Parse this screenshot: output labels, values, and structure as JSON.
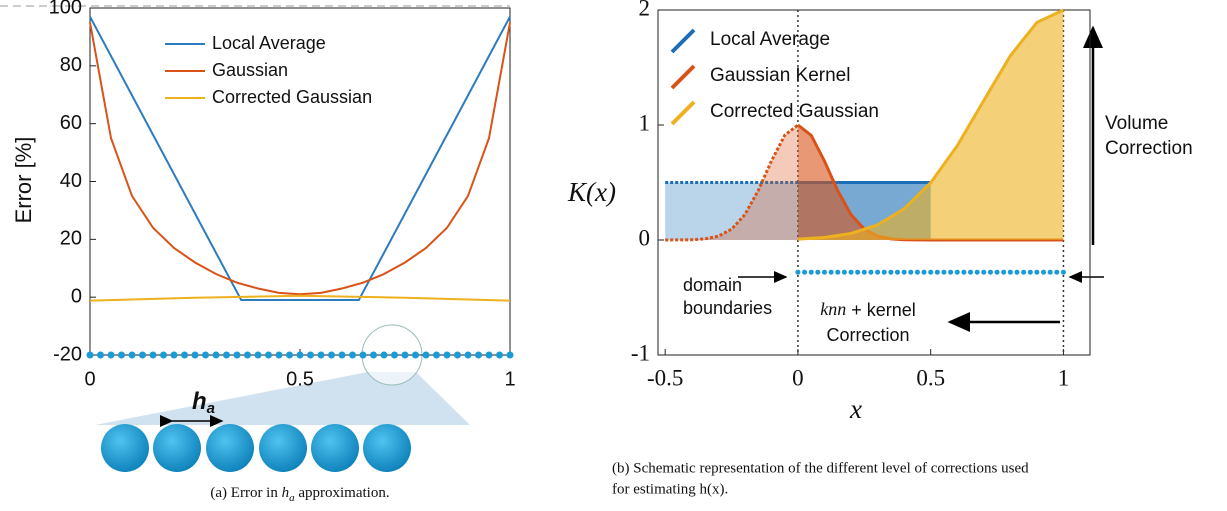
{
  "chart_data": [
    {
      "type": "line",
      "xlim": [
        0,
        1
      ],
      "ylim": [
        -20,
        100
      ],
      "xticks": [
        0,
        0.5,
        1
      ],
      "yticks": [
        -20,
        0,
        20,
        40,
        60,
        80,
        100
      ],
      "ylabel": "Error [%]",
      "legend": "top",
      "series": [
        {
          "name": "Local Average",
          "color": "#2b7bbf",
          "x": [
            0,
            0.36,
            0.64,
            1
          ],
          "values": [
            97,
            -1,
            -1,
            97
          ]
        },
        {
          "name": "Gaussian",
          "color": "#d95319",
          "x": [
            0,
            0.05,
            0.1,
            0.15,
            0.2,
            0.25,
            0.3,
            0.35,
            0.4,
            0.45,
            0.5,
            0.55,
            0.6,
            0.65,
            0.7,
            0.75,
            0.8,
            0.85,
            0.9,
            0.95,
            1
          ],
          "values": [
            95,
            55,
            35,
            24,
            17,
            12,
            8,
            5,
            3,
            1.5,
            1,
            1.5,
            3,
            5,
            8,
            12,
            17,
            24,
            35,
            55,
            95
          ]
        },
        {
          "name": "Corrected Gaussian",
          "color": "#edb120",
          "x": [
            0,
            0.25,
            0.5,
            0.75,
            1
          ],
          "values": [
            -1.2,
            -0.2,
            0.5,
            -0.2,
            -1.2
          ]
        }
      ],
      "points": {
        "color": "#1a9ad6",
        "x": [
          0,
          0.025,
          0.05,
          0.075,
          0.1,
          0.125,
          0.15,
          0.175,
          0.2,
          0.225,
          0.25,
          0.275,
          0.3,
          0.325,
          0.35,
          0.375,
          0.4,
          0.425,
          0.45,
          0.475,
          0.5,
          0.525,
          0.55,
          0.575,
          0.6,
          0.625,
          0.65,
          0.675,
          0.7,
          0.725,
          0.75,
          0.775,
          0.8,
          0.825,
          0.85,
          0.875,
          0.9,
          0.925,
          0.95,
          0.975,
          1
        ],
        "values": [
          -20,
          -20,
          -20,
          -20,
          -20,
          -20,
          -20,
          -20,
          -20,
          -20,
          -20,
          -20,
          -20,
          -20,
          -20,
          -20,
          -20,
          -20,
          -20,
          -20,
          -20,
          -20,
          -20,
          -20,
          -20,
          -20,
          -20,
          -20,
          -20,
          -20,
          -20,
          -20,
          -20,
          -20,
          -20,
          -20,
          -20,
          -20,
          -20,
          -20,
          -20
        ]
      },
      "spacing_label": "h",
      "spacing_subscript": "a",
      "caption": {
        "prefix": "(a) Error in",
        "symbol": "h",
        "subscript": "a",
        "suffix": "approximation."
      }
    },
    {
      "type": "line",
      "xlim": [
        -0.527,
        1.1
      ],
      "ylim": [
        -1,
        2
      ],
      "xticks": [
        -0.5,
        0,
        0.5,
        1
      ],
      "yticks": [
        -1,
        0,
        1,
        2
      ],
      "xlabel": "x",
      "ylabel": "K(x)",
      "fill": true,
      "boundaries": [
        0,
        1
      ],
      "legend": "top-left",
      "series": [
        {
          "name": "Local Average",
          "color": "#1c6fb6",
          "x": [
            -0.5,
            0,
            0.5
          ],
          "values": [
            0.5,
            0.5,
            0.5
          ]
        },
        {
          "name": "Gaussian Kernel",
          "color": "#d95319",
          "x": [
            -0.5,
            -0.4,
            -0.35,
            -0.3,
            -0.25,
            -0.2,
            -0.15,
            -0.1,
            -0.05,
            0,
            0.05,
            0.1,
            0.15,
            0.2,
            0.25,
            0.3,
            0.35,
            0.4,
            0.5,
            1
          ],
          "values": [
            0,
            0.002,
            0.01,
            0.033,
            0.094,
            0.22,
            0.428,
            0.686,
            0.91,
            1,
            0.91,
            0.686,
            0.428,
            0.22,
            0.094,
            0.033,
            0.01,
            0.002,
            0,
            0
          ]
        },
        {
          "name": "Corrected Gaussian",
          "color": "#edb120",
          "x": [
            0,
            0.1,
            0.2,
            0.3,
            0.4,
            0.5,
            0.6,
            0.7,
            0.8,
            0.9,
            1
          ],
          "values": [
            0.008,
            0.022,
            0.057,
            0.131,
            0.271,
            0.498,
            0.82,
            1.213,
            1.602,
            1.892,
            2
          ]
        }
      ],
      "points": {
        "color": "#1a9ad6",
        "x": [
          0,
          0.025,
          0.05,
          0.075,
          0.1,
          0.125,
          0.15,
          0.175,
          0.2,
          0.225,
          0.25,
          0.275,
          0.3,
          0.325,
          0.35,
          0.375,
          0.4,
          0.425,
          0.45,
          0.475,
          0.5,
          0.525,
          0.55,
          0.575,
          0.6,
          0.625,
          0.65,
          0.675,
          0.7,
          0.725,
          0.75,
          0.775,
          0.8,
          0.825,
          0.85,
          0.875,
          0.9,
          0.925,
          0.95,
          0.975,
          1
        ],
        "values": [
          -0.28,
          -0.28,
          -0.28,
          -0.28,
          -0.28,
          -0.28,
          -0.28,
          -0.28,
          -0.28,
          -0.28,
          -0.28,
          -0.28,
          -0.28,
          -0.28,
          -0.28,
          -0.28,
          -0.28,
          -0.28,
          -0.28,
          -0.28,
          -0.28,
          -0.28,
          -0.28,
          -0.28,
          -0.28,
          -0.28,
          -0.28,
          -0.28,
          -0.28,
          -0.28,
          -0.28,
          -0.28,
          -0.28,
          -0.28,
          -0.28,
          -0.28,
          -0.28,
          -0.28,
          -0.28,
          -0.28,
          -0.28
        ]
      },
      "annotations": {
        "volume": [
          "Volume",
          "Correction"
        ],
        "domain": [
          "domain",
          "boundaries"
        ],
        "knn": "knn",
        "kernel": "+ kernel",
        "correction": "Correction"
      },
      "caption": [
        "(b) Schematic representation of the different level of corrections used",
        "for estimating h(x)."
      ]
    }
  ]
}
